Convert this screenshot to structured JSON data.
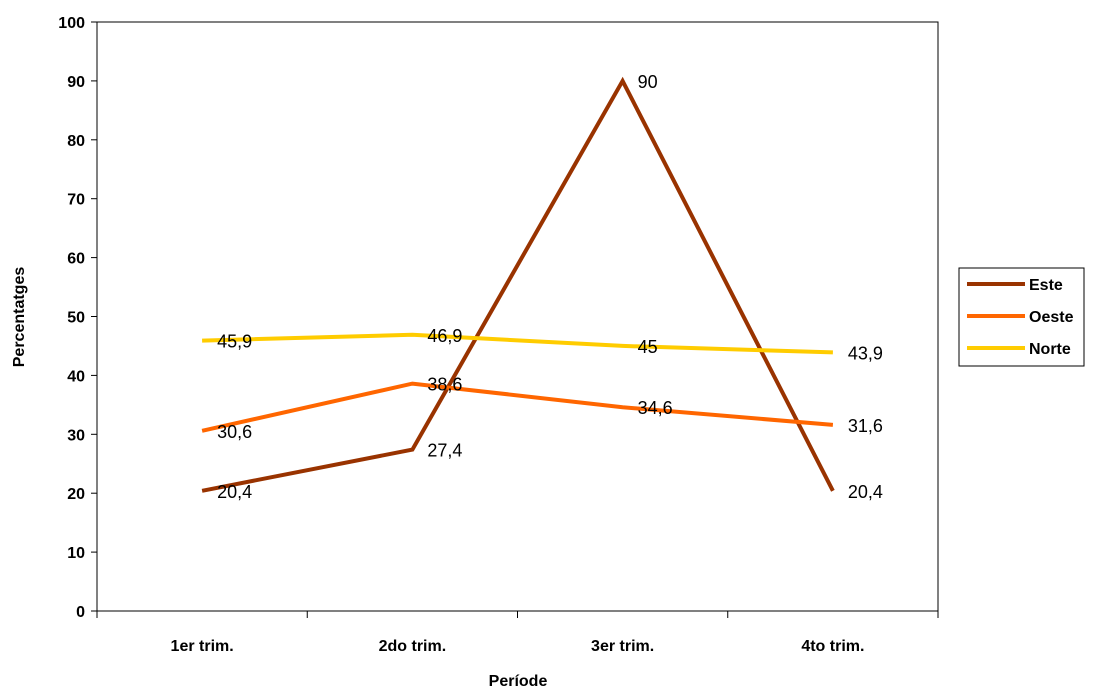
{
  "chart_data": {
    "type": "line",
    "title": "",
    "xlabel": "Període",
    "ylabel": "Percentatges",
    "categories": [
      "1er trim.",
      "2do trim.",
      "3er trim.",
      "4to trim."
    ],
    "ylim": [
      0,
      100
    ],
    "yticks": [
      0,
      10,
      20,
      30,
      40,
      50,
      60,
      70,
      80,
      90,
      100
    ],
    "grid": false,
    "legend_position": "right",
    "series": [
      {
        "name": "Este",
        "color": "#993300",
        "values": [
          20.4,
          27.4,
          90,
          20.4
        ],
        "labels": [
          "20,4",
          "27,4",
          "90",
          "20,4"
        ]
      },
      {
        "name": "Oeste",
        "color": "#FF6600",
        "values": [
          30.6,
          38.6,
          34.6,
          31.6
        ],
        "labels": [
          "30,6",
          "38,6",
          "34,6",
          "31,6"
        ]
      },
      {
        "name": "Norte",
        "color": "#FFCC00",
        "values": [
          45.9,
          46.9,
          45,
          43.9
        ],
        "labels": [
          "45,9",
          "46,9",
          "45",
          "43,9"
        ]
      }
    ]
  }
}
